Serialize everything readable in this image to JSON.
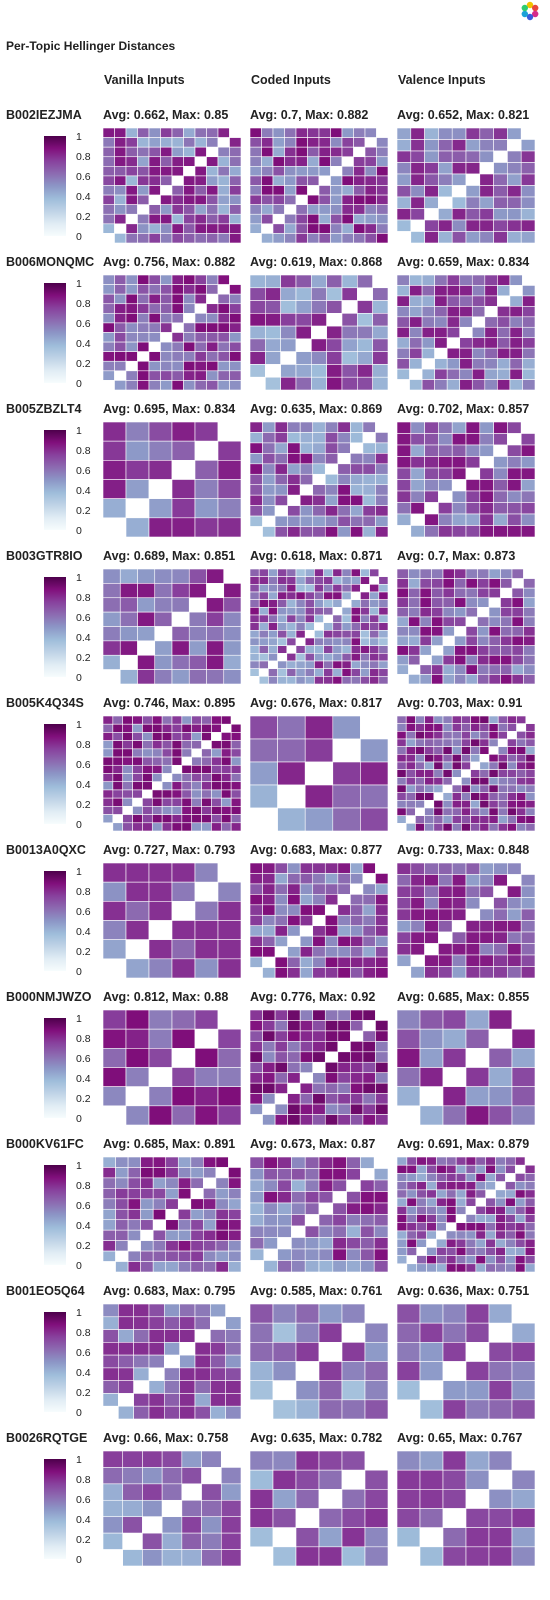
{
  "title": "Per-Topic Hellinger Distances",
  "columns": [
    "Vanilla Inputs",
    "Coded Inputs",
    "Valence Inputs"
  ],
  "legend": {
    "ticks": [
      "1",
      "0.8",
      "0.6",
      "0.4",
      "0.2",
      "0"
    ],
    "min": 0,
    "max": 1
  },
  "colors": {
    "scale": [
      "#f7fcfd",
      "#e0ecf4",
      "#bfd3e6",
      "#9ebcda",
      "#8c96c6",
      "#8c6bb1",
      "#88419d",
      "#810f7c",
      "#4d004b"
    ],
    "diagonal": "#ffffff",
    "grid": "#ffffff"
  },
  "chart_data": {
    "type": "heatmap",
    "title": "Per-Topic Hellinger Distances",
    "value_range": [
      0,
      1
    ],
    "products": [
      {
        "id": "B002IEZJMA",
        "panels": [
          {
            "column": "Vanilla Inputs",
            "label": "Avg: 0.662, Max: 0.85",
            "avg": 0.662,
            "max": 0.85,
            "n": 12
          },
          {
            "column": "Coded Inputs",
            "label": "Avg: 0.7, Max: 0.882",
            "avg": 0.7,
            "max": 0.882,
            "n": 12
          },
          {
            "column": "Valence Inputs",
            "label": "Avg: 0.652, Max: 0.821",
            "avg": 0.652,
            "max": 0.821,
            "n": 10
          }
        ]
      },
      {
        "id": "B006MONQMC",
        "panels": [
          {
            "column": "Vanilla Inputs",
            "label": "Avg: 0.756, Max: 0.882",
            "avg": 0.756,
            "max": 0.882,
            "n": 12
          },
          {
            "column": "Coded Inputs",
            "label": "Avg: 0.619, Max: 0.868",
            "avg": 0.619,
            "max": 0.868,
            "n": 9
          },
          {
            "column": "Valence Inputs",
            "label": "Avg: 0.659, Max: 0.834",
            "avg": 0.659,
            "max": 0.834,
            "n": 11
          }
        ]
      },
      {
        "id": "B005ZBZLT4",
        "panels": [
          {
            "column": "Vanilla Inputs",
            "label": "Avg: 0.695, Max: 0.834",
            "avg": 0.695,
            "max": 0.834,
            "n": 6
          },
          {
            "column": "Coded Inputs",
            "label": "Avg: 0.635, Max: 0.869",
            "avg": 0.635,
            "max": 0.869,
            "n": 11
          },
          {
            "column": "Valence Inputs",
            "label": "Avg: 0.702, Max: 0.857",
            "avg": 0.702,
            "max": 0.857,
            "n": 10
          }
        ]
      },
      {
        "id": "B003GTR8IO",
        "panels": [
          {
            "column": "Vanilla Inputs",
            "label": "Avg: 0.689, Max: 0.851",
            "avg": 0.689,
            "max": 0.851,
            "n": 8
          },
          {
            "column": "Coded Inputs",
            "label": "Avg: 0.618, Max: 0.871",
            "avg": 0.618,
            "max": 0.871,
            "n": 15
          },
          {
            "column": "Valence Inputs",
            "label": "Avg: 0.7, Max: 0.873",
            "avg": 0.7,
            "max": 0.873,
            "n": 12
          }
        ]
      },
      {
        "id": "B005K4Q34S",
        "panels": [
          {
            "column": "Vanilla Inputs",
            "label": "Avg: 0.746, Max: 0.895",
            "avg": 0.746,
            "max": 0.895,
            "n": 14
          },
          {
            "column": "Coded Inputs",
            "label": "Avg: 0.676, Max: 0.817",
            "avg": 0.676,
            "max": 0.817,
            "n": 5
          },
          {
            "column": "Valence Inputs",
            "label": "Avg: 0.703, Max: 0.91",
            "avg": 0.703,
            "max": 0.91,
            "n": 15
          }
        ]
      },
      {
        "id": "B0013A0QXC",
        "panels": [
          {
            "column": "Vanilla Inputs",
            "label": "Avg: 0.727, Max: 0.793",
            "avg": 0.727,
            "max": 0.793,
            "n": 6
          },
          {
            "column": "Coded Inputs",
            "label": "Avg: 0.683, Max: 0.877",
            "avg": 0.683,
            "max": 0.877,
            "n": 11
          },
          {
            "column": "Valence Inputs",
            "label": "Avg: 0.733, Max: 0.848",
            "avg": 0.733,
            "max": 0.848,
            "n": 10
          }
        ]
      },
      {
        "id": "B000NMJWZO",
        "panels": [
          {
            "column": "Vanilla Inputs",
            "label": "Avg: 0.812, Max: 0.88",
            "avg": 0.812,
            "max": 0.88,
            "n": 6
          },
          {
            "column": "Coded Inputs",
            "label": "Avg: 0.776, Max: 0.92",
            "avg": 0.776,
            "max": 0.92,
            "n": 11
          },
          {
            "column": "Valence Inputs",
            "label": "Avg: 0.685, Max: 0.855",
            "avg": 0.685,
            "max": 0.855,
            "n": 6
          }
        ]
      },
      {
        "id": "B000KV61FC",
        "panels": [
          {
            "column": "Vanilla Inputs",
            "label": "Avg: 0.685, Max: 0.891",
            "avg": 0.685,
            "max": 0.891,
            "n": 11
          },
          {
            "column": "Coded Inputs",
            "label": "Avg: 0.673, Max: 0.87",
            "avg": 0.673,
            "max": 0.87,
            "n": 10
          },
          {
            "column": "Valence Inputs",
            "label": "Avg: 0.691, Max: 0.879",
            "avg": 0.691,
            "max": 0.879,
            "n": 14
          }
        ]
      },
      {
        "id": "B001EO5Q64",
        "panels": [
          {
            "column": "Vanilla Inputs",
            "label": "Avg: 0.683, Max: 0.795",
            "avg": 0.683,
            "max": 0.795,
            "n": 9
          },
          {
            "column": "Coded Inputs",
            "label": "Avg: 0.585, Max: 0.761",
            "avg": 0.585,
            "max": 0.761,
            "n": 6
          },
          {
            "column": "Valence Inputs",
            "label": "Avg: 0.636, Max: 0.751",
            "avg": 0.636,
            "max": 0.751,
            "n": 6
          }
        ]
      },
      {
        "id": "B0026RQTGE",
        "panels": [
          {
            "column": "Vanilla Inputs",
            "label": "Avg: 0.66, Max: 0.758",
            "avg": 0.66,
            "max": 0.758,
            "n": 7
          },
          {
            "column": "Coded Inputs",
            "label": "Avg: 0.635, Max: 0.782",
            "avg": 0.635,
            "max": 0.782,
            "n": 6
          },
          {
            "column": "Valence Inputs",
            "label": "Avg: 0.65, Max: 0.767",
            "avg": 0.65,
            "max": 0.767,
            "n": 6
          }
        ]
      }
    ]
  }
}
